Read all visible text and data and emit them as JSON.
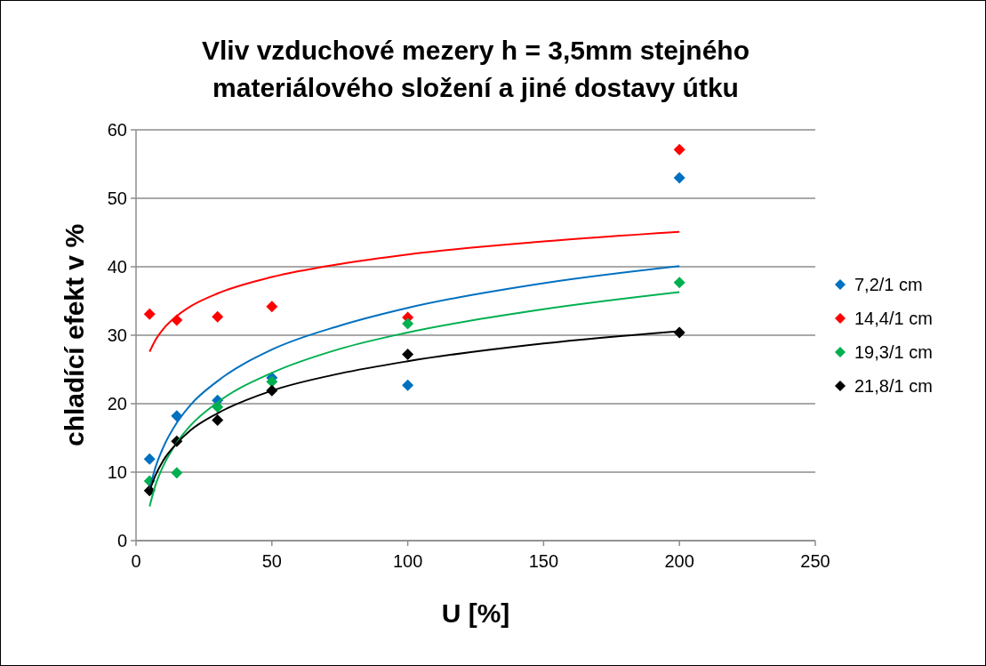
{
  "chart_data": {
    "type": "scatter",
    "title": "Vliv vzduchové mezery h = 3,5mm  stejného materiálového složení a jiné dostavy útku",
    "xlabel": "U [%]",
    "ylabel": "chladící efekt v %",
    "x": [
      5,
      15,
      30,
      50,
      100,
      200
    ],
    "series": [
      {
        "name": "7,2/1 cm",
        "color": "#0070c0",
        "values": [
          11.9,
          18.2,
          20.5,
          23.8,
          22.7,
          53.0
        ]
      },
      {
        "name": "14,4/1 cm",
        "color": "#ff0000",
        "values": [
          33.1,
          32.2,
          32.7,
          34.2,
          32.6,
          57.1
        ]
      },
      {
        "name": "19,3/1 cm",
        "color": "#00b050",
        "values": [
          8.7,
          9.9,
          19.5,
          23.2,
          31.7,
          37.7
        ]
      },
      {
        "name": "21,8/1 cm",
        "color": "#000000",
        "values": [
          7.3,
          14.5,
          17.6,
          21.9,
          27.2,
          30.4
        ]
      },
      {
        "type": "line",
        "marker": "none",
        "color": "#0070c0",
        "x": [
          5,
          7,
          10,
          15,
          20,
          30,
          50,
          75,
          100,
          150,
          200
        ],
        "values": [
          7.5,
          10.5,
          13.6,
          17.2,
          19.8,
          23.3,
          27.9,
          31.4,
          34.0,
          37.6,
          40.1
        ]
      },
      {
        "type": "line",
        "marker": "none",
        "color": "#ff0000",
        "x": [
          5,
          7,
          10,
          15,
          20,
          30,
          50,
          75,
          100,
          150,
          200
        ],
        "values": [
          27.6,
          29.2,
          30.9,
          32.8,
          34.2,
          36.1,
          38.5,
          40.4,
          41.8,
          43.7,
          45.1
        ]
      },
      {
        "type": "line",
        "marker": "none",
        "color": "#00b050",
        "x": [
          5,
          7,
          10,
          15,
          20,
          30,
          50,
          75,
          100,
          150,
          200
        ],
        "values": [
          5.0,
          7.9,
          10.9,
          14.3,
          16.8,
          20.2,
          24.5,
          28.0,
          30.4,
          33.8,
          36.3
        ]
      },
      {
        "type": "line",
        "marker": "none",
        "color": "#000000",
        "x": [
          5,
          7,
          10,
          15,
          20,
          30,
          50,
          75,
          100,
          150,
          200
        ],
        "values": [
          7.3,
          9.4,
          11.7,
          14.2,
          16.1,
          18.6,
          21.9,
          24.4,
          26.2,
          28.8,
          30.6
        ]
      }
    ],
    "xlim": [
      0,
      250
    ],
    "xticks": [
      0,
      50,
      100,
      150,
      200,
      250
    ],
    "ylim": [
      0,
      60
    ],
    "yticks": [
      0,
      10,
      20,
      30,
      40,
      50,
      60
    ],
    "grid": "y",
    "legend": "right",
    "marker": "diamond",
    "line_style": "solid"
  }
}
